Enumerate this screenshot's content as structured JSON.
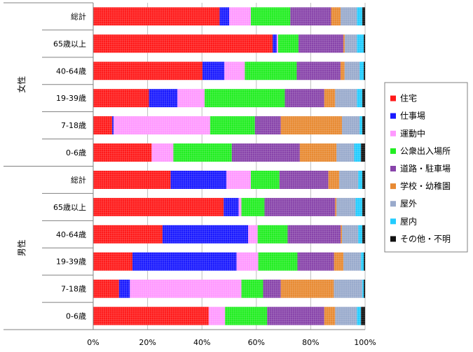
{
  "chart_data": {
    "type": "bar",
    "orientation": "horizontal",
    "stacked": true,
    "groups": [
      {
        "name": "女性",
        "categories": [
          "総計",
          "65歳以上",
          "40-64歳",
          "19-39歳",
          "7-18歳",
          "0-6歳"
        ]
      },
      {
        "name": "男性",
        "categories": [
          "総計",
          "65歳以上",
          "40-64歳",
          "19-39歳",
          "7-18歳",
          "0-6歳"
        ]
      }
    ],
    "categories": [
      "総計",
      "65歳以上",
      "40-64歳",
      "19-39歳",
      "7-18歳",
      "0-6歳",
      "総計",
      "65歳以上",
      "40-64歳",
      "19-39歳",
      "7-18歳",
      "0-6歳"
    ],
    "series": [
      {
        "name": "住宅",
        "color": "#ff1a1a",
        "values": [
          46.5,
          66.0,
          40.0,
          20.5,
          7.0,
          21.5,
          28.5,
          48.0,
          25.5,
          14.5,
          9.5,
          42.5
        ]
      },
      {
        "name": "仕事場",
        "color": "#1a1aff",
        "values": [
          3.5,
          1.5,
          8.0,
          10.5,
          0.5,
          0.0,
          20.5,
          5.5,
          31.5,
          38.5,
          4.0,
          0.0
        ]
      },
      {
        "name": "運動中",
        "color": "#ff99ff",
        "values": [
          8.0,
          0.5,
          7.5,
          10.0,
          35.5,
          8.0,
          9.0,
          1.0,
          3.5,
          8.0,
          41.0,
          6.0
        ]
      },
      {
        "name": "公衆出入場所",
        "color": "#22ee22",
        "values": [
          14.5,
          7.5,
          19.0,
          29.5,
          16.5,
          21.5,
          10.5,
          8.5,
          11.0,
          14.5,
          8.0,
          15.5
        ]
      },
      {
        "name": "道路・駐車場",
        "color": "#8844aa",
        "values": [
          15.0,
          16.5,
          16.0,
          14.5,
          9.5,
          25.0,
          18.0,
          26.0,
          19.5,
          13.5,
          6.5,
          21.0
        ]
      },
      {
        "name": "学校・幼稚園",
        "color": "#e88a33",
        "values": [
          3.5,
          0.5,
          1.5,
          4.0,
          22.5,
          13.5,
          4.0,
          0.5,
          0.5,
          3.5,
          19.5,
          4.0
        ]
      },
      {
        "name": "屋外",
        "color": "#99aacc",
        "values": [
          6.0,
          4.5,
          5.5,
          8.0,
          6.5,
          6.5,
          7.0,
          7.0,
          6.0,
          6.5,
          10.5,
          8.0
        ]
      },
      {
        "name": "屋内",
        "color": "#22ccff",
        "values": [
          2.0,
          2.5,
          1.5,
          2.0,
          1.0,
          2.5,
          1.5,
          2.5,
          1.5,
          1.0,
          0.5,
          1.5
        ]
      },
      {
        "name": "その他・不明",
        "color": "#111111",
        "values": [
          1.0,
          0.5,
          0.5,
          1.0,
          1.0,
          1.5,
          1.0,
          1.0,
          1.0,
          0.5,
          0.5,
          1.5
        ]
      }
    ],
    "x_ticks": [
      "0%",
      "20%",
      "40%",
      "60%",
      "80%",
      "100%"
    ],
    "xlim": [
      0,
      100
    ],
    "grid": true,
    "legend": "right"
  }
}
